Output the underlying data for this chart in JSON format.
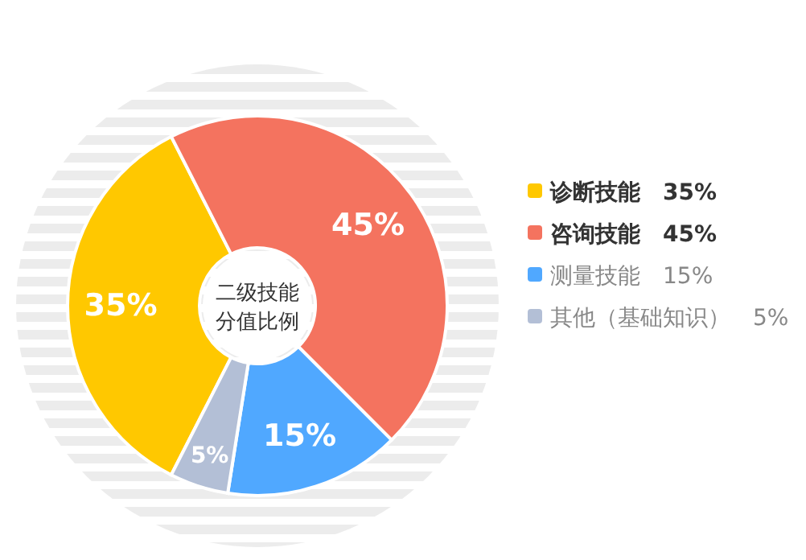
{
  "chart_data": {
    "type": "donut",
    "title": "二级技能分值比例",
    "categories": [
      "诊断技能",
      "咨询技能",
      "测量技能",
      "其他（基础知识）"
    ],
    "values": [
      35,
      45,
      15,
      5
    ],
    "value_labels": [
      "35%",
      "45%",
      "15%",
      "5%"
    ],
    "colors": [
      "#ffc800",
      "#f4735f",
      "#50a8ff",
      "#b3bfd6"
    ],
    "data_labels": true,
    "legend": "right"
  }
}
